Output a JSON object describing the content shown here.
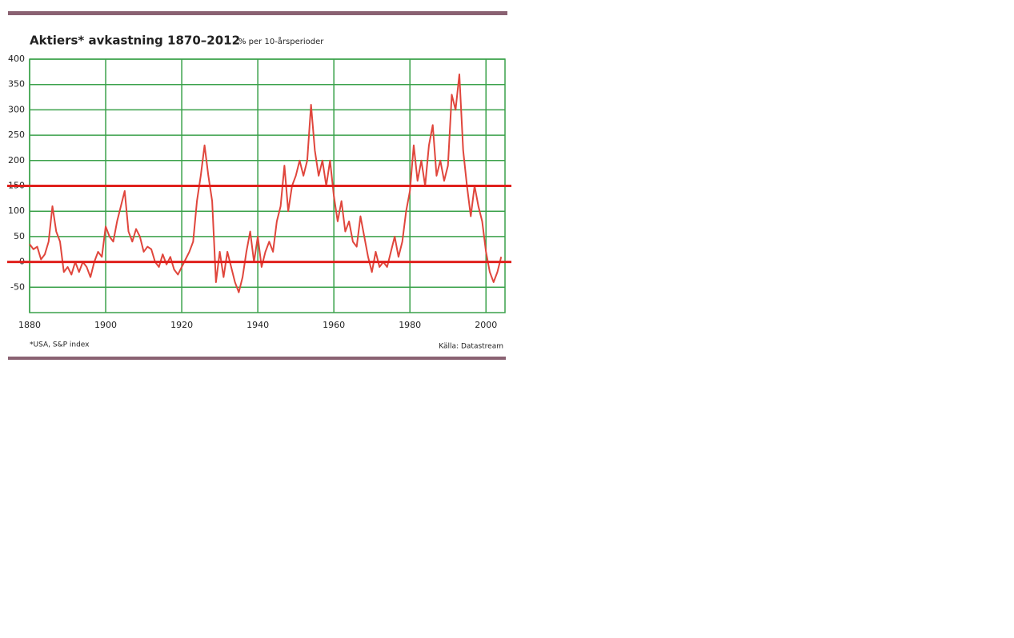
{
  "chart_data": {
    "type": "line",
    "title": "Aktiers* avkastning 1870–2012",
    "subtitle": "% per 10-årsperioder",
    "footnote": "*USA, S&P index",
    "source": "Källa: Datastream",
    "color": "#e0463c",
    "grid_color": "#3aa14a",
    "grid": true,
    "xlim": [
      1880,
      2005
    ],
    "xticks": [
      1880,
      1900,
      1920,
      1940,
      1960,
      1980,
      2000
    ],
    "ylim": [
      -100,
      400
    ],
    "yticks": [
      -50,
      0,
      50,
      100,
      150,
      200,
      250,
      300,
      350,
      400
    ],
    "reference_lines": [
      {
        "value": 150,
        "color": "#e0201c"
      },
      {
        "value": 0,
        "color": "#e0201c"
      }
    ],
    "x": [
      1880,
      1881,
      1882,
      1883,
      1884,
      1885,
      1886,
      1887,
      1888,
      1889,
      1890,
      1891,
      1892,
      1893,
      1894,
      1895,
      1896,
      1897,
      1898,
      1899,
      1900,
      1901,
      1902,
      1903,
      1904,
      1905,
      1906,
      1907,
      1908,
      1909,
      1910,
      1911,
      1912,
      1913,
      1914,
      1915,
      1916,
      1917,
      1918,
      1919,
      1920,
      1921,
      1922,
      1923,
      1924,
      1925,
      1926,
      1927,
      1928,
      1929,
      1930,
      1931,
      1932,
      1933,
      1934,
      1935,
      1936,
      1937,
      1938,
      1939,
      1940,
      1941,
      1942,
      1943,
      1944,
      1945,
      1946,
      1947,
      1948,
      1949,
      1950,
      1951,
      1952,
      1953,
      1954,
      1955,
      1956,
      1957,
      1958,
      1959,
      1960,
      1961,
      1962,
      1963,
      1964,
      1965,
      1966,
      1967,
      1968,
      1969,
      1970,
      1971,
      1972,
      1973,
      1974,
      1975,
      1976,
      1977,
      1978,
      1979,
      1980,
      1981,
      1982,
      1983,
      1984,
      1985,
      1986,
      1987,
      1988,
      1989,
      1990,
      1991,
      1992,
      1993,
      1994,
      1995,
      1996,
      1997,
      1998,
      1999,
      2000,
      2001,
      2002,
      2003,
      2004
    ],
    "values": [
      35,
      25,
      30,
      5,
      15,
      40,
      110,
      60,
      40,
      -20,
      -10,
      -25,
      0,
      -20,
      0,
      -10,
      -30,
      0,
      20,
      10,
      70,
      50,
      40,
      80,
      110,
      140,
      60,
      40,
      65,
      50,
      20,
      30,
      25,
      0,
      -10,
      15,
      -5,
      10,
      -15,
      -25,
      -10,
      5,
      20,
      40,
      120,
      170,
      230,
      170,
      120,
      -40,
      20,
      -30,
      20,
      -10,
      -40,
      -60,
      -30,
      20,
      60,
      0,
      50,
      -10,
      20,
      40,
      20,
      80,
      110,
      190,
      100,
      150,
      170,
      200,
      170,
      200,
      310,
      220,
      170,
      200,
      150,
      200,
      130,
      80,
      120,
      60,
      80,
      40,
      30,
      90,
      50,
      10,
      -20,
      20,
      -10,
      0,
      -10,
      20,
      50,
      10,
      40,
      100,
      140,
      230,
      160,
      200,
      150,
      230,
      270,
      170,
      200,
      160,
      190,
      330,
      300,
      370,
      220,
      150,
      90,
      150,
      110,
      80,
      20,
      -20,
      -40,
      -20,
      10
    ]
  }
}
